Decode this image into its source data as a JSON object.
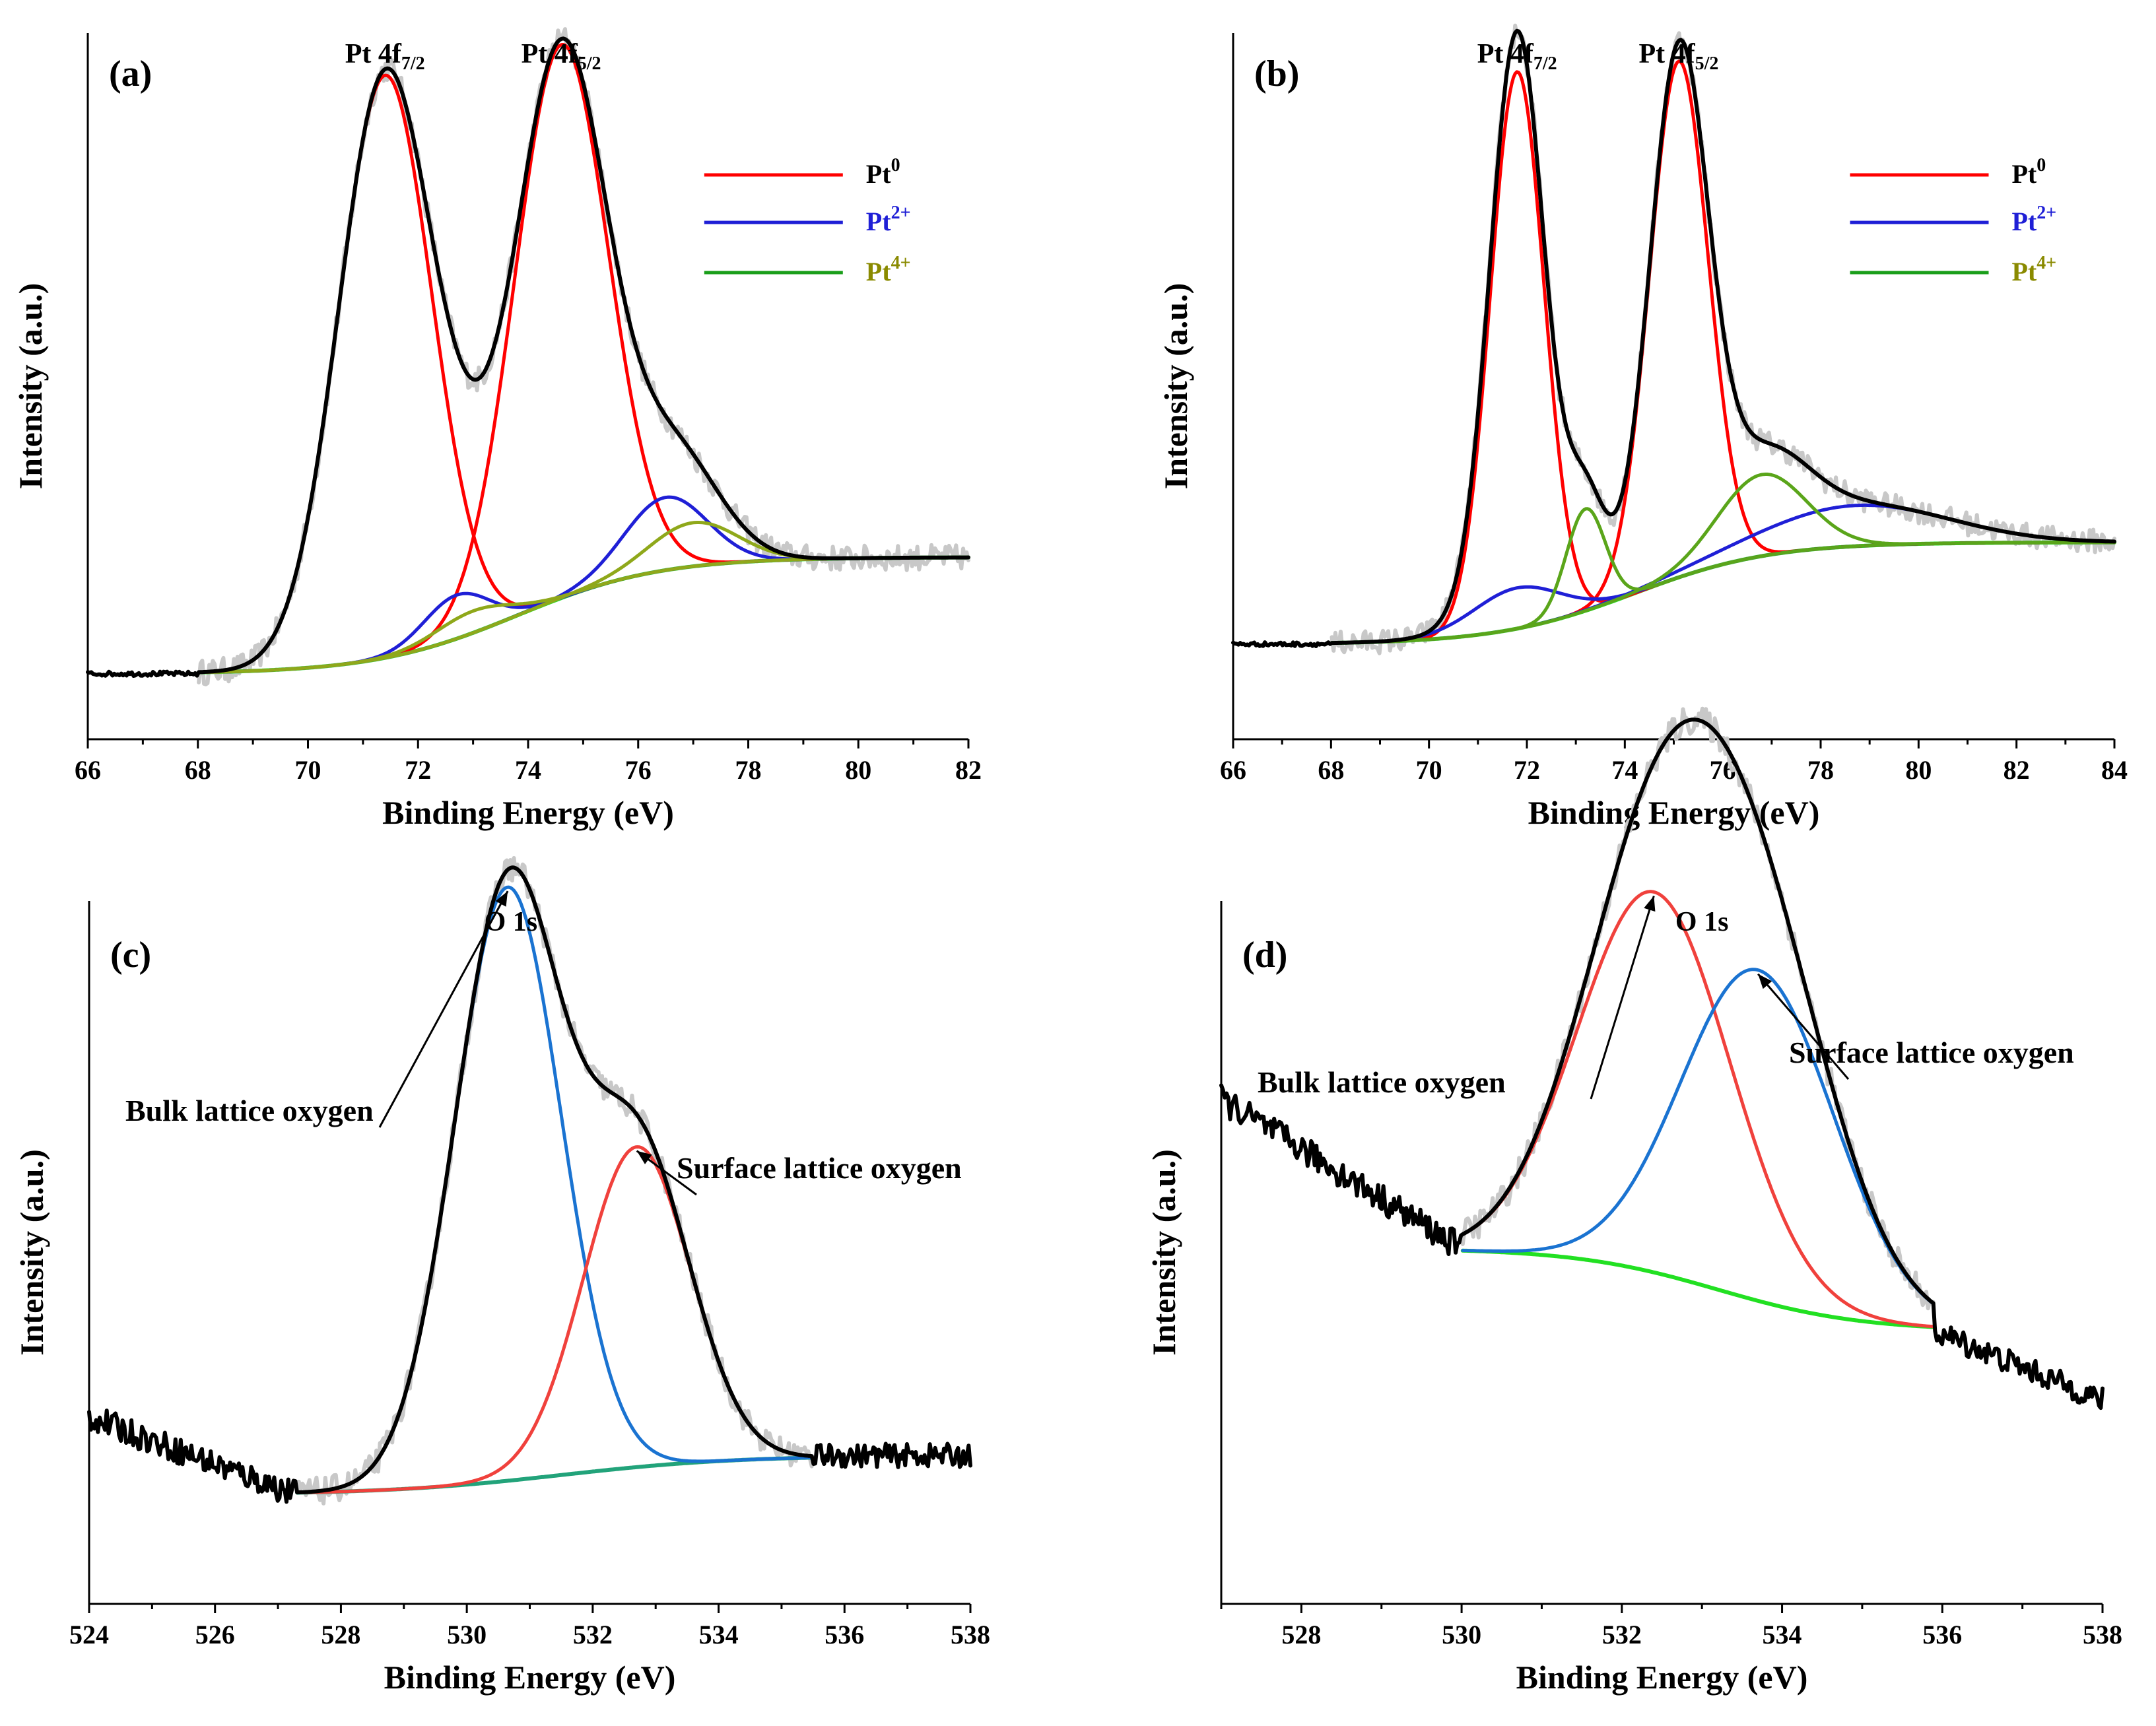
{
  "figure": {
    "panels": [
      "(a)",
      "(b)",
      "(c)",
      "(d)"
    ]
  },
  "chart_data": [
    {
      "panel": "(a)",
      "type": "line",
      "xlabel": "Binding Energy (eV)",
      "ylabel": "Intensity (a.u.)",
      "xlim": [
        66,
        82
      ],
      "xticks": [
        66,
        68,
        70,
        72,
        74,
        76,
        78,
        80,
        82
      ],
      "ylim": [
        0,
        1.0
      ],
      "peak_labels": [
        {
          "main": "Pt 4f",
          "sub": "7/2",
          "x": 71.4
        },
        {
          "main": "Pt 4f",
          "sub": "5/2",
          "x": 74.6
        }
      ],
      "legend": [
        {
          "base": "Pt",
          "sup": "0",
          "color": "#ff0000"
        },
        {
          "base": "Pt",
          "sup": "2+",
          "color": "#1f1fd6"
        },
        {
          "base": "Pt",
          "sup": "4+",
          "color": "#1a9e1a"
        }
      ],
      "raw": {
        "from": 66,
        "to": 82
      },
      "background": {
        "from": 68,
        "to": 82,
        "y0": 0.02,
        "y1": 0.18,
        "center": 73.8,
        "width": 1.3
      },
      "components": [
        {
          "name": "Pt0 4f7/2",
          "color": "#ff0000",
          "center": 71.4,
          "amp": 0.8,
          "sigma": 0.85
        },
        {
          "name": "Pt0 4f5/2",
          "color": "#ff0000",
          "center": 74.6,
          "amp": 0.76,
          "sigma": 0.85
        },
        {
          "name": "Pt2+ 4f7/2",
          "color": "#1f1fd6",
          "center": 72.7,
          "amp": 0.06,
          "sigma": 0.6
        },
        {
          "name": "Pt2+ 4f5/2",
          "color": "#1f1fd6",
          "center": 76.5,
          "amp": 0.1,
          "sigma": 0.75
        },
        {
          "name": "Pt4+ 4f7/2",
          "color": "#8fa81a",
          "center": 73.0,
          "amp": 0.03,
          "sigma": 0.7
        },
        {
          "name": "Pt4+ 4f5/2",
          "color": "#8fa81a",
          "center": 77.0,
          "amp": 0.06,
          "sigma": 0.8
        }
      ]
    },
    {
      "panel": "(b)",
      "type": "line",
      "xlabel": "Binding Energy (eV)",
      "ylabel": "Intensity (a.u.)",
      "xlim": [
        66,
        84
      ],
      "xticks": [
        66,
        68,
        70,
        72,
        74,
        76,
        78,
        80,
        82,
        84
      ],
      "ylim": [
        0,
        1.0
      ],
      "peak_labels": [
        {
          "main": "Pt 4f",
          "sub": "7/2",
          "x": 71.8
        },
        {
          "main": "Pt 4f",
          "sub": "5/2",
          "x": 75.1
        }
      ],
      "legend": [
        {
          "base": "Pt",
          "sup": "0",
          "color": "#ff0000"
        },
        {
          "base": "Pt",
          "sup": "2+",
          "color": "#1f1fd6"
        },
        {
          "base": "Pt",
          "sup": "4+",
          "color": "#1a9e1a"
        }
      ],
      "raw": {
        "from": 66,
        "to": 84
      },
      "background": {
        "from": 68,
        "to": 84,
        "y0": 0.03,
        "y1": 0.18,
        "center": 74.2,
        "width": 1.4
      },
      "components": [
        {
          "name": "Pt0 4f7/2",
          "color": "#ff0000",
          "center": 71.8,
          "amp": 0.82,
          "sigma": 0.55
        },
        {
          "name": "Pt0 4f5/2",
          "color": "#ff0000",
          "center": 75.1,
          "amp": 0.76,
          "sigma": 0.6
        },
        {
          "name": "Pt2+ 4f7/2",
          "color": "#1f1fd6",
          "center": 71.8,
          "amp": 0.06,
          "sigma": 0.9
        },
        {
          "name": "Pt2+ 4f5/2",
          "color": "#1f1fd6",
          "center": 78.7,
          "amp": 0.06,
          "sigma": 1.9
        },
        {
          "name": "Pt4+ 4f7/2",
          "color": "#5aa51a",
          "center": 73.2,
          "amp": 0.15,
          "sigma": 0.4
        },
        {
          "name": "Pt4+ 4f5/2",
          "color": "#5aa51a",
          "center": 76.8,
          "amp": 0.12,
          "sigma": 0.9
        }
      ]
    },
    {
      "panel": "(c)",
      "type": "line",
      "xlabel": "Binding Energy (eV)",
      "ylabel": "Intensity (a.u.)",
      "xlim": [
        524,
        538
      ],
      "xticks": [
        524,
        526,
        528,
        530,
        532,
        534,
        536,
        538
      ],
      "ylim": [
        0,
        1.0
      ],
      "peak_labels": [
        {
          "main": "O 1s",
          "sub": "",
          "x": 530.7
        }
      ],
      "annotations": [
        "Bulk lattice oxygen",
        "Surface lattice oxygen"
      ],
      "raw": {
        "from": 524,
        "to": 538
      },
      "background": {
        "from": 527.3,
        "to": 535.5,
        "y0": 0.12,
        "y1": 0.17,
        "center": 531.5,
        "width": 1.4
      },
      "components": [
        {
          "name": "Bulk lattice oxygen",
          "color": "#1a73d1",
          "center": 530.65,
          "amp": 0.76,
          "sigma": 0.85
        },
        {
          "name": "Surface lattice oxygen",
          "color": "#f0413c",
          "center": 532.7,
          "amp": 0.41,
          "sigma": 0.85
        }
      ]
    },
    {
      "panel": "(d)",
      "type": "line",
      "xlabel": "Binding Energy (eV)",
      "ylabel": "Intensity (a.u.)",
      "xlim": [
        527,
        538
      ],
      "xticks": [
        528,
        530,
        532,
        534,
        536,
        538
      ],
      "ylim": [
        0,
        1.0
      ],
      "peak_labels": [
        {
          "main": "O 1s",
          "sub": "",
          "x": 533.0
        }
      ],
      "annotations": [
        "Bulk lattice oxygen",
        "Surface lattice oxygen"
      ],
      "raw": {
        "from": 527,
        "to": 538
      },
      "background": {
        "from": 530.0,
        "to": 535.9,
        "y0": 0.4,
        "y1": 0.3,
        "center": 533.2,
        "width": 0.9
      },
      "components": [
        {
          "name": "Bulk lattice oxygen",
          "color": "#f0413c",
          "center": 532.4,
          "amp": 0.46,
          "sigma": 0.95
        },
        {
          "name": "Surface lattice oxygen",
          "color": "#1a73d1",
          "center": 533.7,
          "amp": 0.4,
          "sigma": 0.95
        }
      ]
    }
  ]
}
